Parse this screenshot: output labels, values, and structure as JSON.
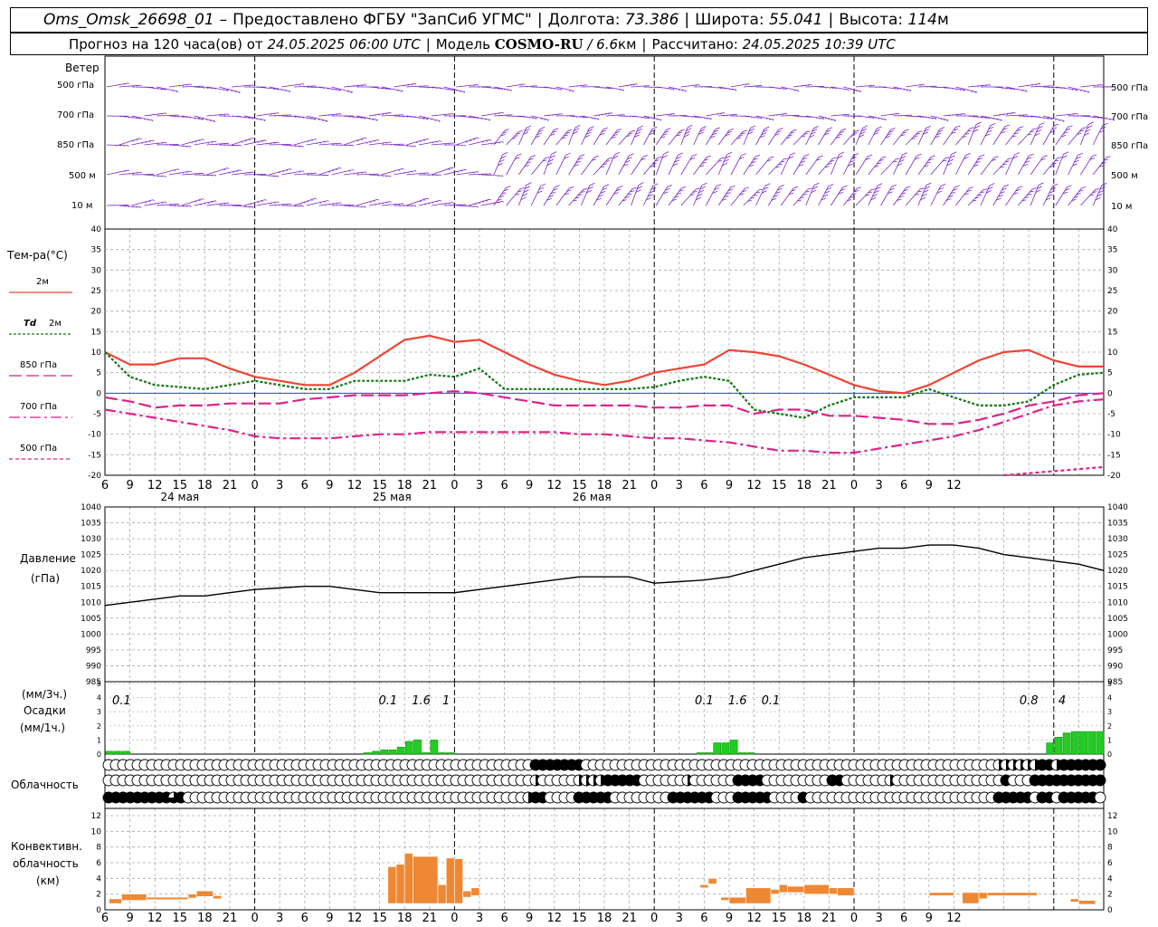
{
  "header": {
    "station": "Oms_Omsk_26698_01",
    "dash": "–",
    "provider": "Предоставлено ФГБУ \"ЗапСиб УГМС\"",
    "lon_label": "Долгота:",
    "lon": "73.386",
    "lat_label": "Широта:",
    "lat": "55.041",
    "alt_label": "Высота:",
    "alt": "114",
    "alt_unit": "м",
    "forecast_prefix": "Прогноз на 120 часа(ов) от",
    "forecast_time": "24.05.2025 06:00 UTC",
    "model_label": "Модель",
    "model": "COSMO-RU",
    "model_res_sep": "/",
    "model_res": "6.6",
    "model_res_unit": "км",
    "calc_label": "Рассчитано:",
    "calc_time": "24.05.2025 10:39 UTC"
  },
  "labels": {
    "wind": "Ветер",
    "levels": [
      "500 гПа",
      "700 гПа",
      "850 гПа",
      "500 м",
      "10 м"
    ],
    "temp_title": "Тем-ра(°С)",
    "t2m": "2м",
    "td": "Td",
    "td2m": "2м",
    "t850": "850 гПа",
    "t700": "700 гПа",
    "t500": "500 гПа",
    "pressure": "Давление",
    "pressure_unit": "(гПа)",
    "precip_unit3": "(мм/3ч.)",
    "precip": "Осадки",
    "precip_unit1": "(мм/1ч.)",
    "cloud": "Облачность",
    "conv1": "Конвективн.",
    "conv2": "облачность",
    "conv3": "(км)"
  },
  "colors": {
    "t2m": "#ee4433",
    "td": "#117711",
    "t850": "#dd2288",
    "t700": "#dd2288",
    "t500": "#dd2288",
    "wind": "#7722cc",
    "pressure": "#000000",
    "precip": "#22cc22",
    "conv": "#ee8833",
    "grid": "#aaaaaa"
  },
  "chart_data": [
    {
      "type": "line",
      "title": "Тем-ра(°С)",
      "x_hours": [
        0,
        3,
        6,
        9,
        12,
        15,
        18,
        21,
        24,
        27,
        30,
        33,
        36,
        39,
        42,
        45,
        48,
        51,
        54,
        57,
        60,
        63,
        66,
        69,
        72,
        75,
        78,
        81,
        84,
        87,
        90,
        93,
        96,
        99,
        102,
        105,
        108,
        111,
        114,
        117,
        120
      ],
      "x_tick_labels": [
        "6",
        "9",
        "12",
        "15",
        "18",
        "21",
        "0",
        "3",
        "6",
        "9",
        "12",
        "15",
        "18",
        "21",
        "0",
        "3",
        "6",
        "9",
        "12",
        "15",
        "18",
        "21",
        "0",
        "3",
        "6",
        "9",
        "12",
        "15",
        "18",
        "21",
        "0",
        "3",
        "6",
        "9",
        "12"
      ],
      "date_labels": [
        "24 мая",
        "25 мая",
        "26 мая"
      ],
      "ylim": [
        -20,
        40
      ],
      "yticks": [
        -20,
        -15,
        -10,
        -5,
        0,
        5,
        10,
        15,
        20,
        25,
        30,
        35,
        40
      ],
      "series": [
        {
          "name": "2м",
          "key": "t2m",
          "values": [
            10,
            7,
            7,
            8.5,
            8.5,
            6,
            4,
            3,
            2,
            2,
            5,
            9,
            13,
            14,
            12.5,
            13,
            10,
            7,
            4.5,
            3,
            2,
            3,
            5,
            6,
            7,
            10.5,
            10,
            9,
            7,
            4.5,
            2,
            0.5,
            0,
            2,
            5,
            8,
            10,
            10.5,
            8,
            6.5,
            6.5
          ]
        },
        {
          "name": "Td 2м",
          "key": "td",
          "values": [
            10,
            4,
            2,
            1.5,
            1,
            2,
            3,
            2,
            1,
            1,
            3,
            3,
            3,
            4.5,
            4,
            6,
            1,
            1,
            1,
            1,
            1,
            1,
            1.5,
            3,
            4,
            3,
            -4,
            -5,
            -6,
            -3,
            -1,
            -1,
            -1,
            1,
            -1,
            -3,
            -3,
            -2,
            2,
            4.5,
            5
          ]
        },
        {
          "name": "850 гПа",
          "key": "t850",
          "values": [
            -1,
            -2,
            -3.5,
            -3,
            -3,
            -2.5,
            -2.5,
            -2.5,
            -1.5,
            -1,
            -0.5,
            -0.5,
            -0.5,
            0,
            0.5,
            0,
            -1,
            -2,
            -3,
            -3,
            -3,
            -3,
            -3.5,
            -3.5,
            -3,
            -3,
            -5,
            -4,
            -4,
            -5.5,
            -5.5,
            -6,
            -6.5,
            -7.5,
            -7.5,
            -6.5,
            -5,
            -3,
            -2,
            -0.5,
            0
          ]
        },
        {
          "name": "700 гПа",
          "key": "t700",
          "values": [
            -4,
            -5,
            -6,
            -7,
            -8,
            -9,
            -10.5,
            -11,
            -11,
            -11,
            -10.5,
            -10,
            -10,
            -9.5,
            -9.5,
            -9.5,
            -9.5,
            -9.5,
            -9.5,
            -10,
            -10,
            -10.5,
            -11,
            -11,
            -11.5,
            -12,
            -13,
            -14,
            -14,
            -14.5,
            -14.5,
            -13.5,
            -12.5,
            -11.5,
            -10.5,
            -9,
            -7,
            -5,
            -3,
            -2,
            -1.5
          ]
        },
        {
          "name": "500 гПа",
          "key": "t500",
          "values": [
            null,
            null,
            null,
            null,
            null,
            null,
            null,
            null,
            null,
            null,
            null,
            null,
            null,
            null,
            null,
            null,
            null,
            null,
            null,
            null,
            null,
            null,
            null,
            null,
            null,
            null,
            null,
            null,
            null,
            null,
            null,
            null,
            null,
            null,
            null,
            null,
            -20,
            -19.5,
            -19,
            -18.5,
            -18
          ]
        }
      ]
    },
    {
      "type": "line",
      "title": "Давление",
      "ylabel": "(гПа)",
      "ylim": [
        985,
        1040
      ],
      "yticks": [
        985,
        990,
        995,
        1000,
        1005,
        1010,
        1015,
        1020,
        1025,
        1030,
        1035,
        1040
      ],
      "x_hours": [
        0,
        3,
        6,
        9,
        12,
        15,
        18,
        21,
        24,
        27,
        30,
        33,
        36,
        39,
        42,
        45,
        48,
        51,
        54,
        57,
        60,
        63,
        66,
        69,
        72,
        75,
        78,
        81,
        84,
        87,
        90,
        93,
        96,
        99,
        102,
        105,
        108,
        111,
        114,
        117,
        120
      ],
      "series": [
        {
          "name": "Давление",
          "values": [
            1009,
            1010,
            1011,
            1012,
            1012,
            1013,
            1014,
            1014.5,
            1015,
            1015,
            1014,
            1013,
            1013,
            1013,
            1013,
            1014,
            1015,
            1016,
            1017,
            1018,
            1018,
            1018,
            1016,
            1016.5,
            1017,
            1018,
            1020,
            1022,
            1024,
            1025,
            1026,
            1027,
            1027,
            1028,
            1028,
            1027,
            1025,
            1024,
            1023,
            1022,
            1020
          ]
        }
      ]
    },
    {
      "type": "bar",
      "title": "Осадки",
      "ylim": [
        0,
        5
      ],
      "yticks": [
        0,
        1,
        2,
        3,
        4,
        5
      ],
      "x_hours": [
        1,
        2,
        3,
        32,
        33,
        34,
        35,
        36,
        37,
        38,
        39,
        40,
        41,
        42,
        43,
        44,
        45,
        46,
        47,
        72,
        73,
        74,
        75,
        76,
        77,
        78,
        79,
        80,
        114,
        115,
        116,
        117,
        118,
        119,
        120
      ],
      "values": [
        0.2,
        0.2,
        0.2,
        0.1,
        0.2,
        0.3,
        0.3,
        0.5,
        0.9,
        1.0,
        0.1,
        1.0,
        0.1,
        0.1,
        0,
        0,
        0,
        0,
        0,
        0.1,
        0.1,
        0.8,
        0.8,
        1.0,
        0.1,
        0.1,
        0,
        0,
        0.8,
        1.2,
        1.5,
        1.6,
        1.6,
        1.6,
        1.6
      ],
      "annotations": [
        {
          "hour": 2,
          "text": "0.1"
        },
        {
          "hour": 34,
          "text": "0.1"
        },
        {
          "hour": 38,
          "text": "1.6"
        },
        {
          "hour": 41,
          "text": "1"
        },
        {
          "hour": 72,
          "text": "0.1"
        },
        {
          "hour": 76,
          "text": "1.6"
        },
        {
          "hour": 80,
          "text": "0.1"
        },
        {
          "hour": 111,
          "text": "0.8"
        },
        {
          "hour": 115,
          "text": "4"
        }
      ]
    },
    {
      "type": "heatmap",
      "title": "Облачность",
      "rows": 3,
      "cover_levels": [
        0,
        1,
        2,
        3,
        4
      ],
      "top": "000000000000000000000000000000000000000000000000000000000004444444000000000000000000000000000000000000000000000000000000000222222442444444",
      "middle": "000000000000000000000000000000000000000000000000000000000002000002222444440000002000000444400000000044000000200000000000000040004444444444",
      "bottom": "444444444340000000000000000000000000000000000000000000000024400004444400000000444444000444440000400000000000000000000000000444440440444440"
    },
    {
      "type": "bar",
      "title": "Конвективн. облачность",
      "ylabel": "(км)",
      "ylim": [
        0,
        12
      ],
      "yticks": [
        0,
        2,
        4,
        6,
        8,
        10,
        12
      ],
      "segments": [
        {
          "h0": 0.5,
          "h1": 2,
          "base": 0.8,
          "top": 1.4
        },
        {
          "h0": 2,
          "h1": 5,
          "base": 1.2,
          "top": 2.0
        },
        {
          "h0": 5,
          "h1": 10,
          "base": 1.3,
          "top": 1.6
        },
        {
          "h0": 10,
          "h1": 11,
          "base": 1.5,
          "top": 2.0
        },
        {
          "h0": 11,
          "h1": 13,
          "base": 1.7,
          "top": 2.4
        },
        {
          "h0": 13,
          "h1": 14,
          "base": 1.4,
          "top": 1.8
        },
        {
          "h0": 34,
          "h1": 35,
          "base": 0.8,
          "top": 5.5
        },
        {
          "h0": 35,
          "h1": 36,
          "base": 0.8,
          "top": 5.8
        },
        {
          "h0": 36,
          "h1": 37,
          "base": 0.8,
          "top": 7.2
        },
        {
          "h0": 37,
          "h1": 40,
          "base": 0.8,
          "top": 6.8
        },
        {
          "h0": 40,
          "h1": 41,
          "base": 0.8,
          "top": 3.2
        },
        {
          "h0": 41,
          "h1": 42,
          "base": 0.8,
          "top": 6.6
        },
        {
          "h0": 42,
          "h1": 43,
          "base": 0.8,
          "top": 6.5
        },
        {
          "h0": 43,
          "h1": 44,
          "base": 1.6,
          "top": 2.4
        },
        {
          "h0": 44,
          "h1": 45,
          "base": 1.8,
          "top": 2.8
        },
        {
          "h0": 71.5,
          "h1": 72.5,
          "base": 2.8,
          "top": 3.2
        },
        {
          "h0": 72.5,
          "h1": 73.5,
          "base": 3.3,
          "top": 4.0
        },
        {
          "h0": 74,
          "h1": 75,
          "base": 1.2,
          "top": 1.6
        },
        {
          "h0": 75,
          "h1": 77,
          "base": 0.8,
          "top": 1.6
        },
        {
          "h0": 77,
          "h1": 80,
          "base": 0.8,
          "top": 2.8
        },
        {
          "h0": 80,
          "h1": 81,
          "base": 2.0,
          "top": 2.6
        },
        {
          "h0": 81,
          "h1": 82,
          "base": 2.2,
          "top": 3.2
        },
        {
          "h0": 82,
          "h1": 84,
          "base": 2.2,
          "top": 3.0
        },
        {
          "h0": 84,
          "h1": 87,
          "base": 2.0,
          "top": 3.2
        },
        {
          "h0": 87,
          "h1": 88,
          "base": 2.0,
          "top": 2.8
        },
        {
          "h0": 88,
          "h1": 90,
          "base": 1.8,
          "top": 2.8
        },
        {
          "h0": 99,
          "h1": 102,
          "base": 1.8,
          "top": 2.2
        },
        {
          "h0": 103,
          "h1": 105,
          "base": 0.8,
          "top": 2.2
        },
        {
          "h0": 105,
          "h1": 106,
          "base": 1.4,
          "top": 2.2
        },
        {
          "h0": 106,
          "h1": 112,
          "base": 1.8,
          "top": 2.2
        },
        {
          "h0": 116,
          "h1": 117,
          "base": 1.0,
          "top": 1.4
        },
        {
          "h0": 117,
          "h1": 119,
          "base": 0.7,
          "top": 1.2
        }
      ]
    }
  ]
}
